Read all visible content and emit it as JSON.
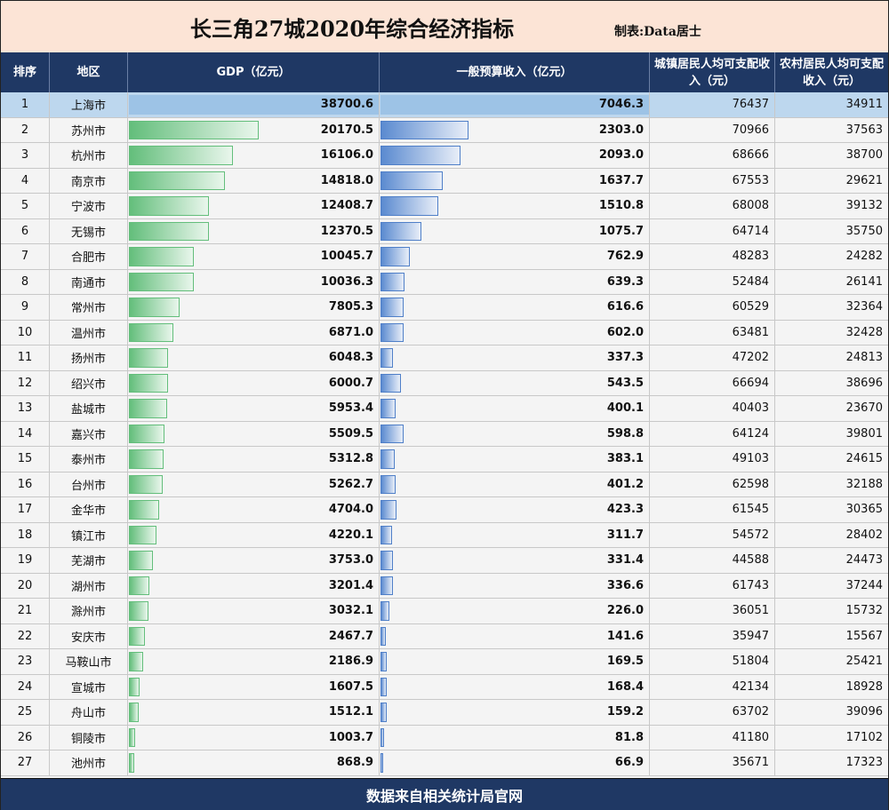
{
  "title": "长三角27城2020年综合经济指标",
  "maker": "制表:Data居士",
  "footer": "数据来自相关统计局官网",
  "headers": {
    "rank": "排序",
    "city": "地区",
    "gdp": "GDP（亿元）",
    "revenue": "一般预算收入（亿元）",
    "urban": "城镇居民人均可支配收入（元）",
    "rural": "农村居民人均可支配收入（元）"
  },
  "colors": {
    "header_bg": "#1f3864",
    "title_bg": "#fce4d6",
    "gdp_bar": "#63be7b",
    "revenue_bar": "#5a8ad0",
    "first_row_bg": "#bdd7ee"
  },
  "chart_data": {
    "type": "table",
    "columns": [
      "排序",
      "地区",
      "GDP（亿元）",
      "一般预算收入（亿元）",
      "城镇居民人均可支配收入（元）",
      "农村居民人均可支配收入（元）"
    ],
    "rows": [
      {
        "rank": "1",
        "city": "上海市",
        "gdp": "38700.6",
        "revenue": "7046.3",
        "urban": "76437",
        "rural": "34911"
      },
      {
        "rank": "2",
        "city": "苏州市",
        "gdp": "20170.5",
        "revenue": "2303.0",
        "urban": "70966",
        "rural": "37563"
      },
      {
        "rank": "3",
        "city": "杭州市",
        "gdp": "16106.0",
        "revenue": "2093.0",
        "urban": "68666",
        "rural": "38700"
      },
      {
        "rank": "4",
        "city": "南京市",
        "gdp": "14818.0",
        "revenue": "1637.7",
        "urban": "67553",
        "rural": "29621"
      },
      {
        "rank": "5",
        "city": "宁波市",
        "gdp": "12408.7",
        "revenue": "1510.8",
        "urban": "68008",
        "rural": "39132"
      },
      {
        "rank": "6",
        "city": "无锡市",
        "gdp": "12370.5",
        "revenue": "1075.7",
        "urban": "64714",
        "rural": "35750"
      },
      {
        "rank": "7",
        "city": "合肥市",
        "gdp": "10045.7",
        "revenue": "762.9",
        "urban": "48283",
        "rural": "24282"
      },
      {
        "rank": "8",
        "city": "南通市",
        "gdp": "10036.3",
        "revenue": "639.3",
        "urban": "52484",
        "rural": "26141"
      },
      {
        "rank": "9",
        "city": "常州市",
        "gdp": "7805.3",
        "revenue": "616.6",
        "urban": "60529",
        "rural": "32364"
      },
      {
        "rank": "10",
        "city": "温州市",
        "gdp": "6871.0",
        "revenue": "602.0",
        "urban": "63481",
        "rural": "32428"
      },
      {
        "rank": "11",
        "city": "扬州市",
        "gdp": "6048.3",
        "revenue": "337.3",
        "urban": "47202",
        "rural": "24813"
      },
      {
        "rank": "12",
        "city": "绍兴市",
        "gdp": "6000.7",
        "revenue": "543.5",
        "urban": "66694",
        "rural": "38696"
      },
      {
        "rank": "13",
        "city": "盐城市",
        "gdp": "5953.4",
        "revenue": "400.1",
        "urban": "40403",
        "rural": "23670"
      },
      {
        "rank": "14",
        "city": "嘉兴市",
        "gdp": "5509.5",
        "revenue": "598.8",
        "urban": "64124",
        "rural": "39801"
      },
      {
        "rank": "15",
        "city": "泰州市",
        "gdp": "5312.8",
        "revenue": "383.1",
        "urban": "49103",
        "rural": "24615"
      },
      {
        "rank": "16",
        "city": "台州市",
        "gdp": "5262.7",
        "revenue": "401.2",
        "urban": "62598",
        "rural": "32188"
      },
      {
        "rank": "17",
        "city": "金华市",
        "gdp": "4704.0",
        "revenue": "423.3",
        "urban": "61545",
        "rural": "30365"
      },
      {
        "rank": "18",
        "city": "镇江市",
        "gdp": "4220.1",
        "revenue": "311.7",
        "urban": "54572",
        "rural": "28402"
      },
      {
        "rank": "19",
        "city": "芜湖市",
        "gdp": "3753.0",
        "revenue": "331.4",
        "urban": "44588",
        "rural": "24473"
      },
      {
        "rank": "20",
        "city": "湖州市",
        "gdp": "3201.4",
        "revenue": "336.6",
        "urban": "61743",
        "rural": "37244"
      },
      {
        "rank": "21",
        "city": "滁州市",
        "gdp": "3032.1",
        "revenue": "226.0",
        "urban": "36051",
        "rural": "15732"
      },
      {
        "rank": "22",
        "city": "安庆市",
        "gdp": "2467.7",
        "revenue": "141.6",
        "urban": "35947",
        "rural": "15567"
      },
      {
        "rank": "23",
        "city": "马鞍山市",
        "gdp": "2186.9",
        "revenue": "169.5",
        "urban": "51804",
        "rural": "25421"
      },
      {
        "rank": "24",
        "city": "宣城市",
        "gdp": "1607.5",
        "revenue": "168.4",
        "urban": "42134",
        "rural": "18928"
      },
      {
        "rank": "25",
        "city": "舟山市",
        "gdp": "1512.1",
        "revenue": "159.2",
        "urban": "63702",
        "rural": "39096"
      },
      {
        "rank": "26",
        "city": "铜陵市",
        "gdp": "1003.7",
        "revenue": "81.8",
        "urban": "41180",
        "rural": "17102"
      },
      {
        "rank": "27",
        "city": "池州市",
        "gdp": "868.9",
        "revenue": "66.9",
        "urban": "35671",
        "rural": "17323"
      }
    ]
  }
}
